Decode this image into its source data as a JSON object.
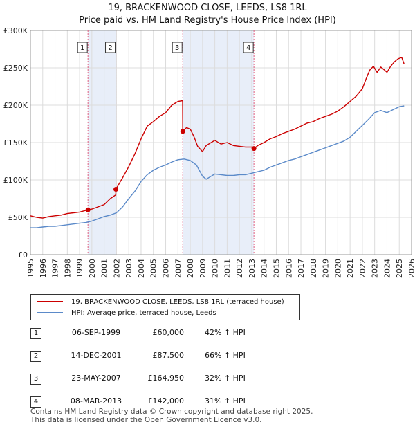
{
  "title": "19, BRACKENWOOD CLOSE, LEEDS, LS8 1RL",
  "subtitle": "Price paid vs. HM Land Registry's House Price Index (HPI)",
  "colors": {
    "property": "#cc0000",
    "hpi": "#5b8ac9",
    "shade": "#e8eef9",
    "vline": "#e06080"
  },
  "chart_data": {
    "type": "line",
    "title": "19, BRACKENWOOD CLOSE, LEEDS, LS8 1RL",
    "xlabel": "",
    "ylabel": "",
    "xlim": [
      1995,
      2026
    ],
    "ylim": [
      0,
      300000
    ],
    "y_ticks": [
      0,
      50000,
      100000,
      150000,
      200000,
      250000,
      300000
    ],
    "y_tick_labels": [
      "£0",
      "£50K",
      "£100K",
      "£150K",
      "£200K",
      "£250K",
      "£300K"
    ],
    "x_ticks": [
      1995,
      1996,
      1997,
      1998,
      1999,
      2000,
      2001,
      2002,
      2003,
      2004,
      2005,
      2006,
      2007,
      2008,
      2009,
      2010,
      2011,
      2012,
      2013,
      2014,
      2015,
      2016,
      2017,
      2018,
      2019,
      2020,
      2021,
      2022,
      2023,
      2024,
      2025,
      2026
    ],
    "x_tick_labels": [
      "1995",
      "1996",
      "1997",
      "1998",
      "1999",
      "2000",
      "2001",
      "2002",
      "2003",
      "2004",
      "2005",
      "2006",
      "2007",
      "2008",
      "2009",
      "2010",
      "2011",
      "2012",
      "2013",
      "2014",
      "2015",
      "2016",
      "2017",
      "2018",
      "2019",
      "2020",
      "2021",
      "2022",
      "2023",
      "2024",
      "2025",
      "2026"
    ],
    "shaded_regions": [
      [
        1999.68,
        2001.95
      ],
      [
        2007.39,
        2013.18
      ]
    ],
    "series": [
      {
        "name": "19, BRACKENWOOD CLOSE, LEEDS, LS8 1RL (terraced house)",
        "color": "#cc0000",
        "x": [
          1995.0,
          1995.5,
          1996.0,
          1996.5,
          1997.0,
          1997.5,
          1998.0,
          1998.5,
          1999.0,
          1999.68,
          2000.0,
          2000.5,
          2001.0,
          2001.5,
          2001.94,
          2001.95,
          2002.5,
          2003.0,
          2003.5,
          2004.0,
          2004.5,
          2005.0,
          2005.5,
          2006.0,
          2006.5,
          2007.0,
          2007.38,
          2007.39,
          2007.7,
          2008.0,
          2008.3,
          2008.6,
          2009.0,
          2009.3,
          2009.7,
          2010.0,
          2010.5,
          2011.0,
          2011.5,
          2012.0,
          2012.5,
          2013.0,
          2013.18,
          2013.5,
          2014.0,
          2014.5,
          2015.0,
          2015.5,
          2016.0,
          2016.5,
          2017.0,
          2017.5,
          2018.0,
          2018.5,
          2019.0,
          2019.5,
          2020.0,
          2020.5,
          2021.0,
          2021.5,
          2022.0,
          2022.3,
          2022.6,
          2022.9,
          2023.2,
          2023.5,
          2023.8,
          2024.0,
          2024.3,
          2024.6,
          2024.9,
          2025.2,
          2025.4
        ],
        "y": [
          52000,
          50000,
          49000,
          51000,
          52000,
          53000,
          55000,
          56000,
          57000,
          60000,
          61000,
          64000,
          67000,
          75000,
          80000,
          87500,
          103000,
          118000,
          135000,
          155000,
          172000,
          178000,
          185000,
          190000,
          200000,
          205000,
          206000,
          164950,
          170000,
          168000,
          158000,
          145000,
          138000,
          146000,
          150000,
          153000,
          148000,
          150000,
          146000,
          145000,
          144000,
          144000,
          142000,
          146000,
          150000,
          155000,
          158000,
          162000,
          165000,
          168000,
          172000,
          176000,
          178000,
          182000,
          185000,
          188000,
          192000,
          198000,
          205000,
          212000,
          222000,
          235000,
          247000,
          252000,
          244000,
          251000,
          247000,
          244000,
          252000,
          258000,
          262000,
          264000,
          255000
        ]
      },
      {
        "name": "HPI: Average price, terraced house, Leeds",
        "color": "#5b8ac9",
        "x": [
          1995.0,
          1995.5,
          1996.0,
          1996.5,
          1997.0,
          1997.5,
          1998.0,
          1998.5,
          1999.0,
          1999.5,
          2000.0,
          2000.5,
          2001.0,
          2001.5,
          2002.0,
          2002.5,
          2003.0,
          2003.5,
          2004.0,
          2004.5,
          2005.0,
          2005.5,
          2006.0,
          2006.5,
          2007.0,
          2007.5,
          2008.0,
          2008.5,
          2009.0,
          2009.3,
          2009.6,
          2010.0,
          2010.5,
          2011.0,
          2011.5,
          2012.0,
          2012.5,
          2013.0,
          2013.5,
          2014.0,
          2014.5,
          2015.0,
          2015.5,
          2016.0,
          2016.5,
          2017.0,
          2017.5,
          2018.0,
          2018.5,
          2019.0,
          2019.5,
          2020.0,
          2020.5,
          2021.0,
          2021.5,
          2022.0,
          2022.5,
          2023.0,
          2023.5,
          2024.0,
          2024.5,
          2025.0,
          2025.4
        ],
        "y": [
          36000,
          36000,
          37000,
          38000,
          38000,
          39000,
          40000,
          41000,
          42000,
          43000,
          45000,
          48000,
          51000,
          53000,
          56000,
          64000,
          75000,
          85000,
          98000,
          107000,
          113000,
          117000,
          120000,
          124000,
          127000,
          128000,
          126000,
          120000,
          105000,
          101000,
          104000,
          108000,
          107000,
          106000,
          106000,
          107000,
          107000,
          109000,
          111000,
          113000,
          117000,
          120000,
          123000,
          126000,
          128000,
          131000,
          134000,
          137000,
          140000,
          143000,
          146000,
          149000,
          152000,
          157000,
          165000,
          173000,
          181000,
          190000,
          193000,
          190000,
          194000,
          198000,
          199000
        ]
      }
    ],
    "sales": [
      {
        "label": "1",
        "x": 1999.68,
        "price": 60000
      },
      {
        "label": "2",
        "x": 2001.95,
        "price": 87500
      },
      {
        "label": "3",
        "x": 2007.39,
        "price": 164950
      },
      {
        "label": "4",
        "x": 2013.18,
        "price": 142000
      }
    ]
  },
  "legend": {
    "property": "19, BRACKENWOOD CLOSE, LEEDS, LS8 1RL (terraced house)",
    "hpi": "HPI: Average price, terraced house, Leeds"
  },
  "table": [
    {
      "num": "1",
      "date": "06-SEP-1999",
      "price": "£60,000",
      "hpi": "42% ↑ HPI"
    },
    {
      "num": "2",
      "date": "14-DEC-2001",
      "price": "£87,500",
      "hpi": "66% ↑ HPI"
    },
    {
      "num": "3",
      "date": "23-MAY-2007",
      "price": "£164,950",
      "hpi": "32% ↑ HPI"
    },
    {
      "num": "4",
      "date": "08-MAR-2013",
      "price": "£142,000",
      "hpi": "31% ↑ HPI"
    }
  ],
  "footer": {
    "line1": "Contains HM Land Registry data © Crown copyright and database right 2025.",
    "line2": "This data is licensed under the Open Government Licence v3.0."
  }
}
